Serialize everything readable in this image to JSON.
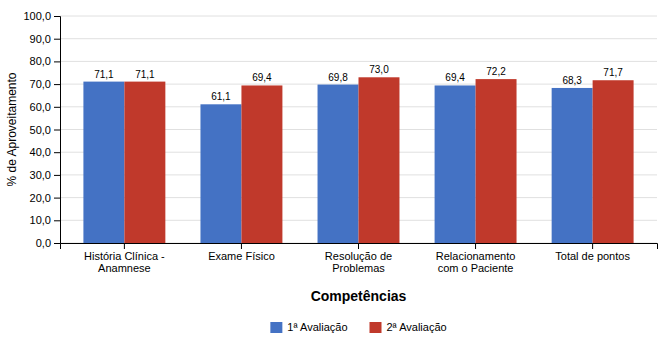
{
  "chart_data": {
    "type": "bar",
    "categories": [
      "História Clínica -\nAnamnese",
      "Exame Físico",
      "Resolução de\nProblemas",
      "Relacionamento\ncom o Paciente",
      "Total de pontos"
    ],
    "series": [
      {
        "name": "1ª Avaliação",
        "color": "#4472C4",
        "values": [
          71.1,
          61.1,
          69.8,
          69.4,
          68.3
        ],
        "value_labels": [
          "71,1",
          "61,1",
          "69,8",
          "69,4",
          "68,3"
        ]
      },
      {
        "name": "2ª Avaliação",
        "color": "#C0392B",
        "values": [
          71.1,
          69.4,
          73.0,
          72.2,
          71.7
        ],
        "value_labels": [
          "71,1",
          "69,4",
          "73,0",
          "72,2",
          "71,7"
        ]
      }
    ],
    "x_label": "Competências",
    "y_label": "% de Aproveitamento",
    "ylim": [
      0,
      100
    ],
    "yticks": [
      {
        "value": 0,
        "label": "0,0"
      },
      {
        "value": 10,
        "label": "10,0"
      },
      {
        "value": 20,
        "label": "20,0"
      },
      {
        "value": 30,
        "label": "30,0"
      },
      {
        "value": 40,
        "label": "40,0"
      },
      {
        "value": 50,
        "label": "50,0"
      },
      {
        "value": 60,
        "label": "60,0"
      },
      {
        "value": 70,
        "label": "70,0"
      },
      {
        "value": 80,
        "label": "80,0"
      },
      {
        "value": 90,
        "label": "90,0"
      },
      {
        "value": 100,
        "label": "100,0"
      }
    ],
    "grid": true,
    "data_labels": true,
    "legend": "bottom"
  }
}
